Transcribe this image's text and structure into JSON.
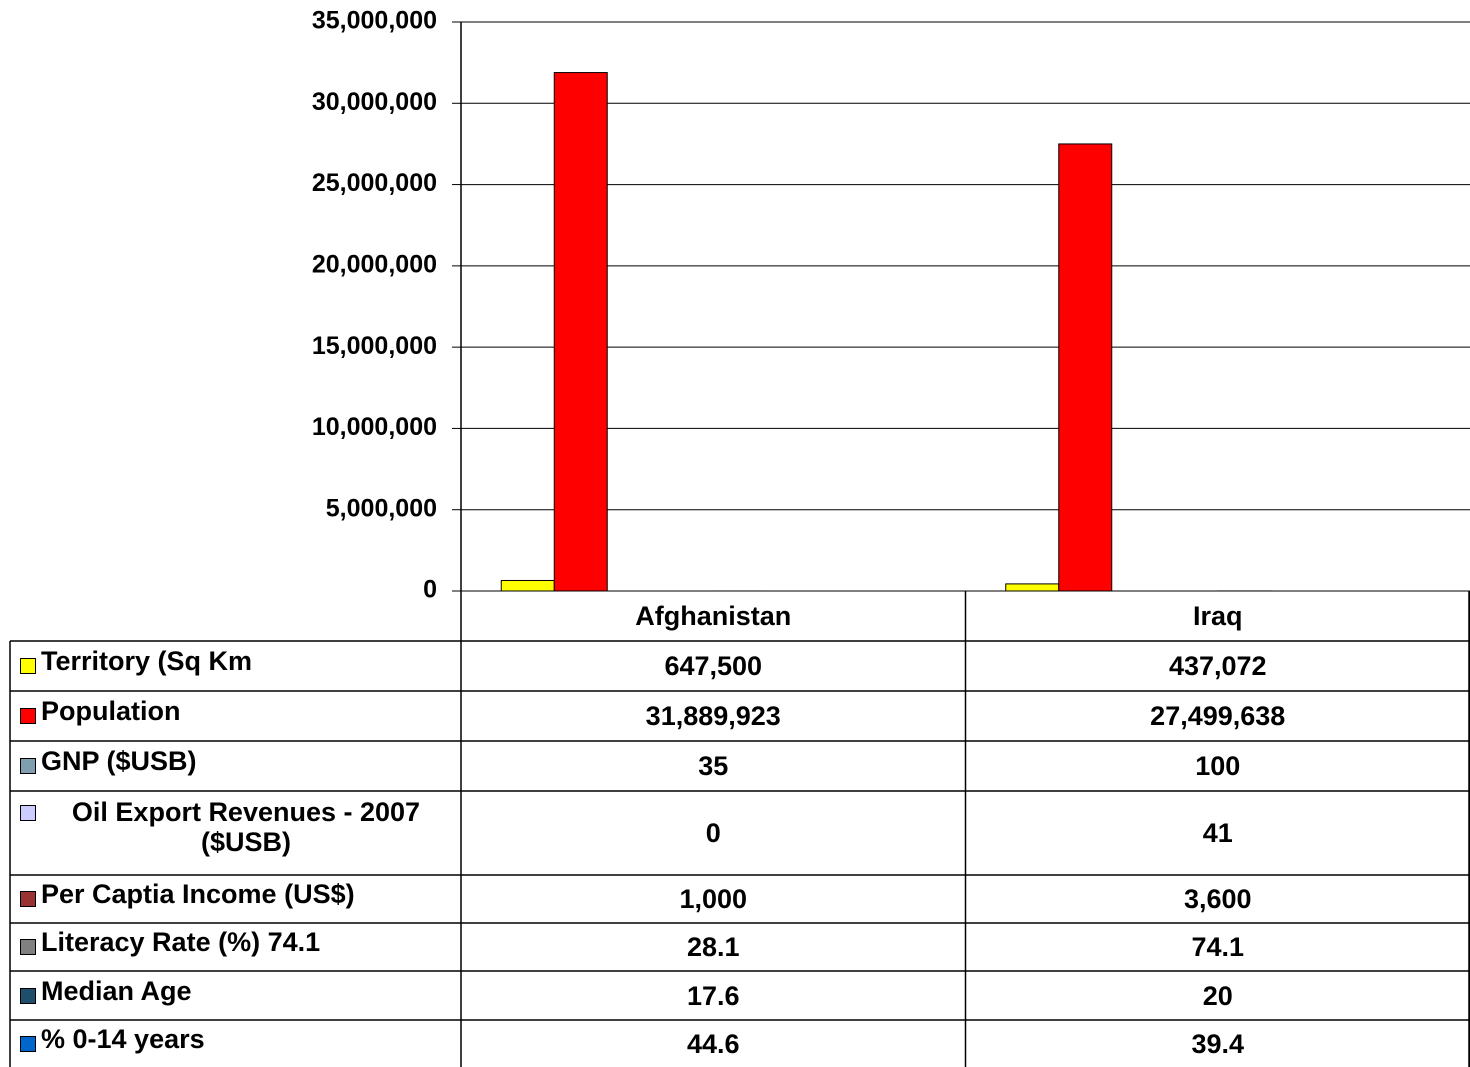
{
  "chart_data": {
    "type": "bar",
    "categories": [
      "Afghanistan",
      "Iraq"
    ],
    "series": [
      {
        "name": "Territory (Sq Km",
        "color": "#ffff00",
        "values": [
          647500,
          437072
        ],
        "value_labels": [
          "647,500",
          "437,072"
        ]
      },
      {
        "name": "Population",
        "color": "#ff0000",
        "values": [
          31889923,
          27499638
        ],
        "value_labels": [
          "31,889,923",
          "27,499,638"
        ]
      },
      {
        "name": "GNP ($USB)",
        "color": "#7f9fae",
        "values": [
          35,
          100
        ]
      },
      {
        "name": "Oil Export Revenues - 2007 ($USB)",
        "color": "#ccccff",
        "values": [
          0,
          41
        ]
      },
      {
        "name": "Per Captia Income (US$)",
        "color": "#993333",
        "values": [
          1000,
          3600
        ],
        "value_labels": [
          "1,000",
          "3,600"
        ]
      },
      {
        "name": "Literacy Rate (%) 74.1",
        "color": "#808080",
        "values": [
          28.1,
          74.1
        ]
      },
      {
        "name": "Median Age",
        "color": "#1f4e6b",
        "values": [
          17.6,
          20
        ]
      },
      {
        "name": "% 0-14 years",
        "color": "#0066cc",
        "values": [
          44.6,
          39.4
        ]
      }
    ],
    "ylim": [
      0,
      35000000
    ],
    "yticks": [
      0,
      {
        "value": 5000000,
        "label": "5,000,000"
      },
      {
        "value": 10000000,
        "label": "10,000,000"
      },
      {
        "value": 15000000,
        "label": "15,000,000"
      },
      {
        "value": 20000000,
        "label": "20,000,000"
      },
      {
        "value": 25000000,
        "label": "25,000,000"
      },
      {
        "value": 30000000,
        "label": "30,000,000"
      },
      {
        "value": 35000000,
        "label": "35,000,000"
      }
    ],
    "grid": true,
    "legend": "table"
  }
}
